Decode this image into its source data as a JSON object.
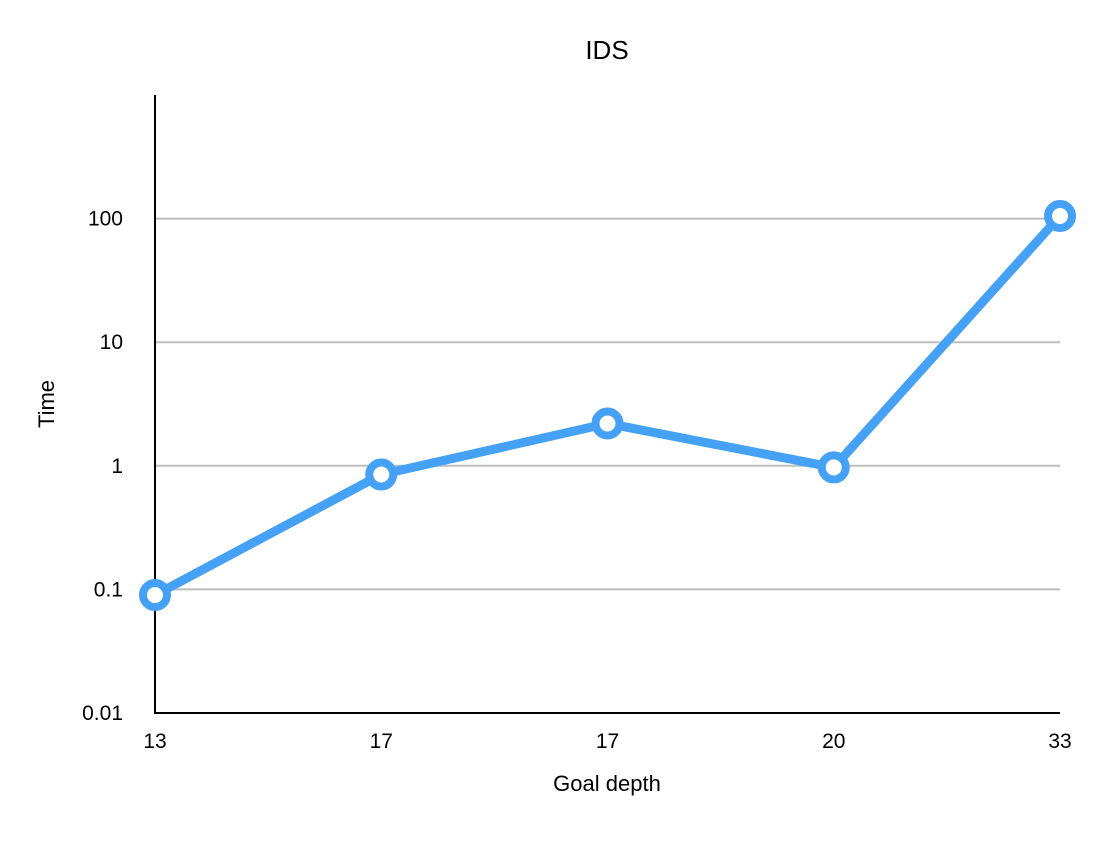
{
  "chart_data": {
    "type": "line",
    "title": "IDS",
    "xlabel": "Goal depth",
    "ylabel": "Time",
    "categories": [
      "13",
      "17",
      "17",
      "20",
      "33"
    ],
    "series": [
      {
        "values": [
          0.09,
          0.85,
          2.2,
          0.97,
          105
        ]
      }
    ],
    "y_scale": "log",
    "ylim": [
      0.01,
      1000
    ],
    "y_ticks": [
      "0.01",
      "0.1",
      "1",
      "10",
      "100"
    ],
    "grid": true,
    "legend": "none",
    "colors": {
      "line": "#45a1f5",
      "marker_fill": "#ffffff",
      "grid": "#bdbdbd"
    }
  }
}
